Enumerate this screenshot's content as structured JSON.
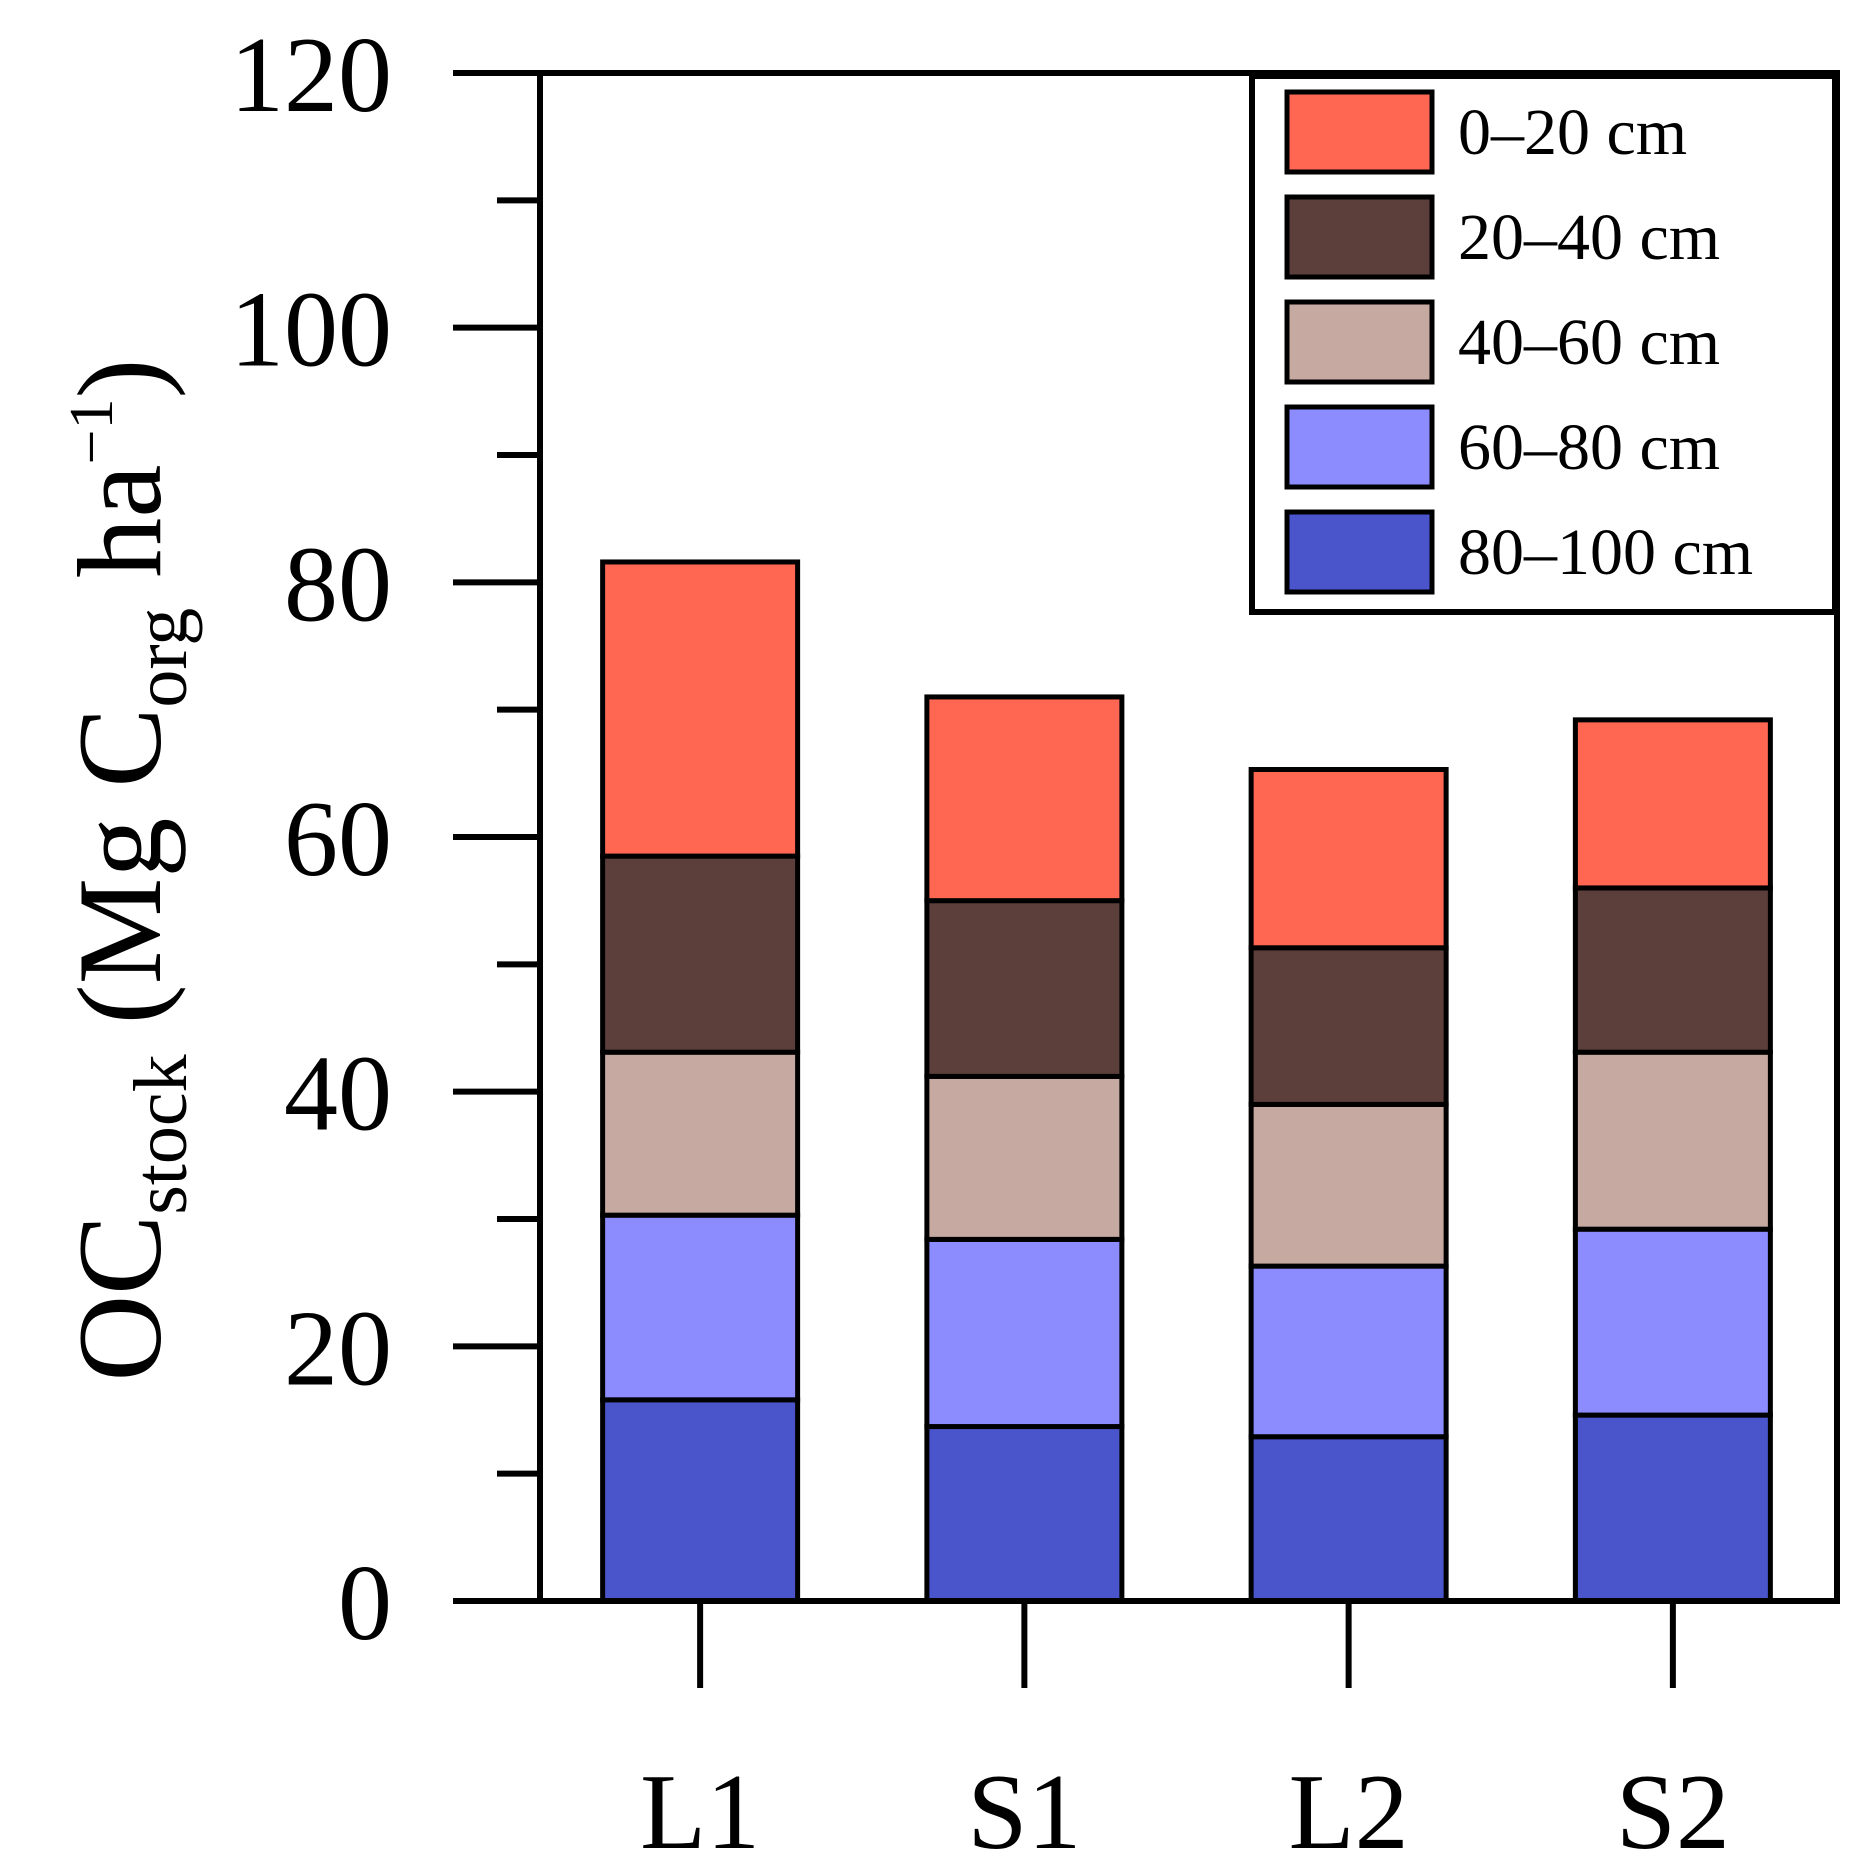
{
  "chart_data": {
    "type": "bar",
    "stacked": true,
    "categories": [
      "L1",
      "S1",
      "L2",
      "S2"
    ],
    "series": [
      {
        "name": "80–100 cm",
        "color": "#4a55cc",
        "values": [
          15.8,
          13.7,
          12.9,
          14.6
        ]
      },
      {
        "name": "60–80 cm",
        "color": "#8c8cff",
        "values": [
          14.5,
          14.7,
          13.4,
          14.6
        ]
      },
      {
        "name": "40–60 cm",
        "color": "#c6a9a0",
        "values": [
          12.8,
          12.8,
          12.7,
          13.9
        ]
      },
      {
        "name": "20–40 cm",
        "color": "#5c3f3b",
        "values": [
          15.4,
          13.8,
          12.3,
          12.9
        ]
      },
      {
        "name": "0–20 cm",
        "color": "#ff6753",
        "values": [
          23.1,
          16.0,
          14.0,
          13.2
        ]
      }
    ],
    "legend_order": [
      "0–20 cm",
      "20–40 cm",
      "40–60 cm",
      "60–80 cm",
      "80–100 cm"
    ],
    "legend_position": "top-right",
    "ylim": [
      0,
      120
    ],
    "yticks": [
      "0",
      "20",
      "40",
      "60",
      "80",
      "100",
      "120"
    ],
    "ylabel": {
      "main": "OC",
      "sub1": "stock",
      "mid": " (Mg C",
      "sub2": "org",
      "mid2": " ha",
      "sup": "−1",
      "end": ")"
    },
    "xlabel": "",
    "title": ""
  }
}
